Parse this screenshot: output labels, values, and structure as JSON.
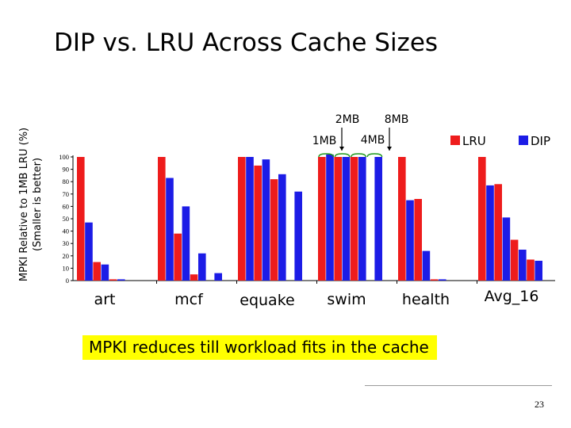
{
  "slide": {
    "title": "DIP vs. LRU Across Cache Sizes",
    "ylabel_line1": "MPKI Relative to 1MB LRU (%)",
    "ylabel_line2": "(Smaller is better)",
    "callout": "MPKI reduces till workload fits in the cache",
    "page_number": "23"
  },
  "annotations": {
    "size_labels": [
      "1MB",
      "2MB",
      "4MB",
      "8MB"
    ]
  },
  "colors": {
    "lru": "#ee1c1c",
    "dip": "#1c1ce6"
  },
  "chart_data": {
    "type": "bar",
    "title": "",
    "ylabel": "",
    "ylim": [
      0,
      100
    ],
    "yticks": [
      0,
      10,
      20,
      30,
      40,
      50,
      60,
      70,
      80,
      90,
      100
    ],
    "grid": false,
    "legend_position": "top-right",
    "categories": [
      "art",
      "mcf",
      "equake",
      "swim",
      "health",
      "Avg_16"
    ],
    "cache_sizes": [
      "1MB",
      "2MB",
      "4MB",
      "8MB"
    ],
    "series": [
      {
        "name": "LRU",
        "color": "#ee1c1c",
        "values": [
          [
            100,
            15,
            1,
            0
          ],
          [
            100,
            38,
            5,
            0
          ],
          [
            100,
            93,
            82,
            0
          ],
          [
            100,
            100,
            100,
            0
          ],
          [
            100,
            66,
            1,
            0
          ],
          [
            100,
            78,
            33,
            17
          ]
        ]
      },
      {
        "name": "DIP",
        "color": "#1c1ce6",
        "values": [
          [
            47,
            13,
            1,
            0
          ],
          [
            83,
            60,
            22,
            6
          ],
          [
            100,
            98,
            86,
            72
          ],
          [
            102,
            100,
            100,
            100
          ],
          [
            65,
            24,
            1,
            0
          ],
          [
            77,
            51,
            25,
            16
          ]
        ]
      }
    ]
  }
}
